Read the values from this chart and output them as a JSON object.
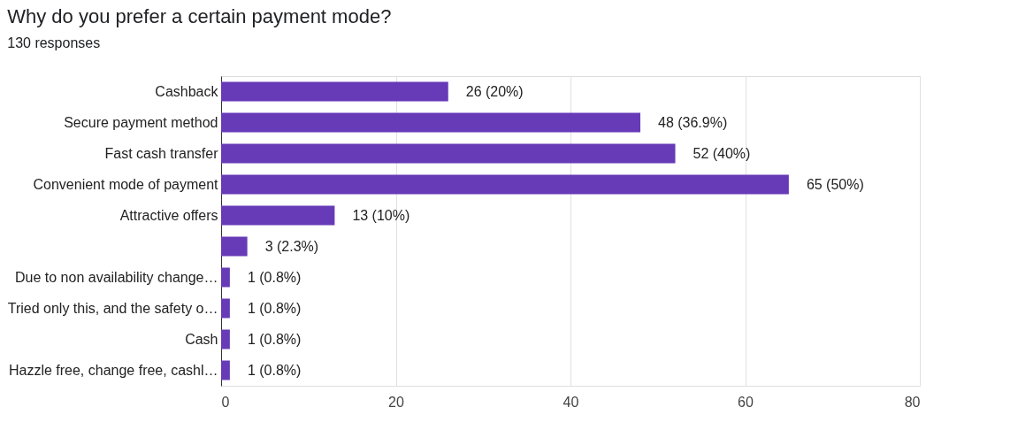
{
  "chart_data": {
    "type": "bar",
    "orientation": "horizontal",
    "title": "Why do you prefer a certain payment mode?",
    "subtitle": "130 responses",
    "categories": [
      "Cashback",
      "Secure payment method",
      "Fast cash transfer",
      "Convenient mode of payment",
      "Attractive offers",
      null,
      "Due to non availability change…",
      "Tried only this, and the safety o…",
      "Cash",
      "Hazzle free, change free, cashl…"
    ],
    "values": [
      26,
      48,
      52,
      65,
      13,
      3,
      1,
      1,
      1,
      1
    ],
    "value_labels": [
      "26 (20%)",
      "48 (36.9%)",
      "52 (40%)",
      "65 (50%)",
      "13 (10%)",
      "3 (2.3%)",
      "1 (0.8%)",
      "1 (0.8%)",
      "1 (0.8%)",
      "1 (0.8%)"
    ],
    "color": "#673ab7",
    "xlim": [
      0,
      80
    ],
    "xticks": [
      0,
      20,
      40,
      60,
      80
    ],
    "grid": "x"
  }
}
